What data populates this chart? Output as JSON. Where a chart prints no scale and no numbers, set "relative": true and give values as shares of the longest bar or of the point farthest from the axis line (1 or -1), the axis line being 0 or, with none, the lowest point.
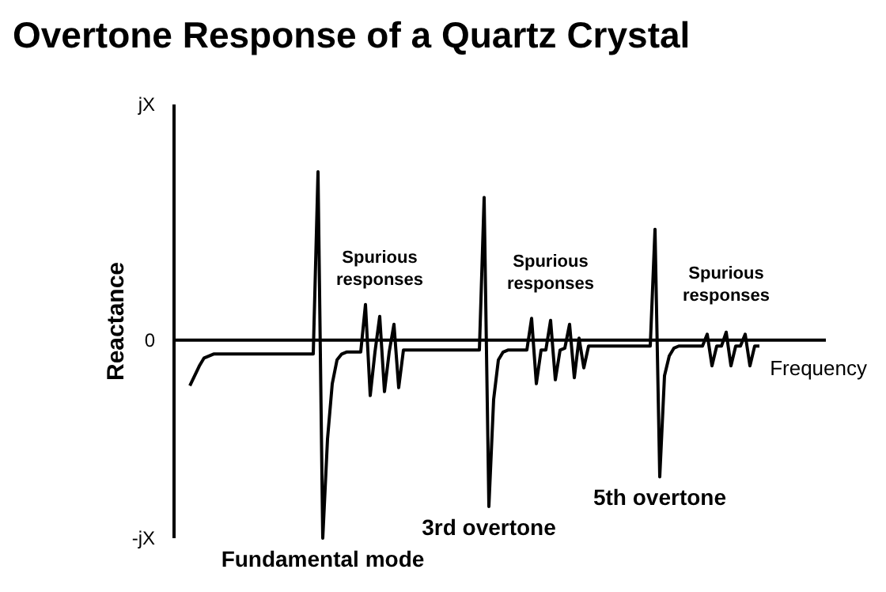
{
  "chart_data": {
    "type": "line",
    "title": "Overtone Response of a Quartz Crystal",
    "xlabel": "Frequency",
    "ylabel": "Reactance",
    "categories": [
      null,
      null,
      null,
      null,
      null,
      null,
      null,
      null,
      null,
      null,
      null,
      null,
      null,
      null,
      null,
      null,
      null,
      null,
      null,
      null,
      null,
      null,
      null,
      null,
      null,
      null,
      null,
      null,
      null,
      null,
      null,
      null,
      null,
      null,
      null,
      null,
      null,
      null,
      null,
      null,
      null,
      null,
      null,
      null,
      null,
      null,
      null,
      null,
      null,
      null,
      null,
      null,
      null,
      null,
      null,
      null,
      null,
      null,
      null,
      null,
      null,
      null,
      null,
      null,
      null,
      null,
      null,
      null,
      null,
      null,
      null,
      null,
      null,
      null,
      null,
      null,
      null,
      null,
      null,
      null,
      null,
      null,
      null,
      null,
      null,
      null,
      null,
      null,
      null,
      null,
      null,
      null,
      null,
      null,
      null,
      null,
      null,
      null,
      null,
      null,
      null,
      null,
      null,
      null,
      null,
      null,
      null,
      null,
      null,
      null,
      null,
      null,
      null,
      null,
      null,
      null,
      null,
      null,
      null,
      null,
      null
    ],
    "relative": true,
    "marker": "none",
    "line_style": "solid",
    "series": [
      {
        "color": "#000000",
        "values": [
          -0.23,
          -0.18,
          -0.13,
          -0.09,
          -0.08,
          -0.07,
          -0.07,
          -0.07,
          -0.07,
          -0.07,
          -0.07,
          -0.07,
          -0.07,
          -0.07,
          -0.07,
          -0.07,
          -0.07,
          -0.07,
          -0.07,
          -0.07,
          -0.07,
          -0.07,
          -0.07,
          -0.07,
          -0.07,
          -0.07,
          -0.07,
          0.85,
          -1,
          -0.5,
          -0.22,
          -0.1,
          -0.07,
          -0.06,
          -0.06,
          -0.06,
          -0.06,
          0.18,
          -0.28,
          -0.06,
          0.12,
          -0.26,
          -0.06,
          0.08,
          -0.24,
          -0.05,
          -0.05,
          -0.05,
          -0.05,
          -0.05,
          -0.05,
          -0.05,
          -0.05,
          -0.05,
          -0.05,
          -0.05,
          -0.05,
          -0.05,
          -0.05,
          -0.05,
          -0.05,
          -0.05,
          0.72,
          -0.84,
          -0.3,
          -0.1,
          -0.06,
          -0.05,
          -0.05,
          -0.05,
          -0.05,
          -0.05,
          0.11,
          -0.22,
          -0.05,
          -0.05,
          0.1,
          -0.2,
          -0.05,
          -0.04,
          0.08,
          -0.19,
          0.01,
          -0.14,
          -0.03,
          -0.03,
          -0.03,
          -0.03,
          -0.03,
          -0.03,
          -0.03,
          -0.03,
          -0.03,
          -0.03,
          -0.03,
          -0.03,
          -0.03,
          -0.03,
          0.56,
          -0.69,
          -0.18,
          -0.08,
          -0.04,
          -0.03,
          -0.03,
          -0.03,
          -0.03,
          -0.03,
          -0.03,
          0.03,
          -0.13,
          -0.03,
          -0.03,
          0.04,
          -0.13,
          -0.03,
          -0.03,
          0.03,
          -0.13,
          -0.03,
          -0.03
        ]
      }
    ],
    "annotations": [
      "jX",
      "0",
      "-jX",
      {
        "text": "Fundamental mode",
        "y": -1
      },
      {
        "text": "Spurious responses",
        "y": 0.12
      },
      {
        "text": "3rd overtone",
        "y": -0.84
      },
      {
        "text": "Spurious responses",
        "y": 0.1
      },
      {
        "text": "5th overtone",
        "y": -0.69
      },
      {
        "text": "Spurious responses",
        "y": 0.04
      }
    ]
  }
}
